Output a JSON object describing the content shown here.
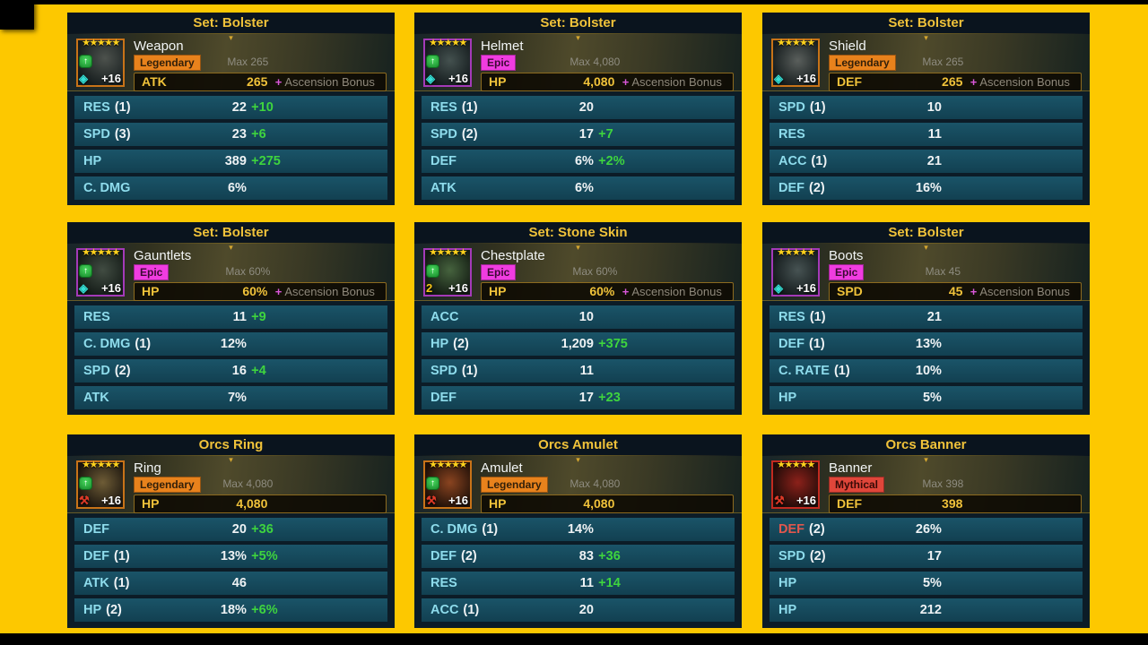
{
  "page": {
    "background_color": "#fdc800",
    "letterbox_color": "#000000"
  },
  "icons": {
    "chevron_down": "▾",
    "ascended_arrow": "↑"
  },
  "colors": {
    "set_title": "#f0c23a",
    "substat_label": "#8edcec",
    "bonus_green": "#3ed43e",
    "main_stat_gold": "#f0c23a",
    "ascension_plus": "#d957d9",
    "muted_gray": "#8e8c80",
    "red_label": "#e2574d"
  },
  "cards": [
    {
      "set_title": "Set: Bolster",
      "item": {
        "name": "Weapon",
        "rarity": "Legendary",
        "rarity_bg": "#e8821c",
        "rarity_fg": "#33200a",
        "border_color": "#c87318",
        "art": "radial-gradient(circle at 60% 40%, #4d524d, #141b1c 78%)",
        "stars": "★★★★★",
        "ascended": true,
        "corner": {
          "name": "arcane-gem-icon",
          "glyph": "◈",
          "color": "#35e0d6"
        },
        "level": "+16",
        "max_label": "Max 265",
        "main_stat": {
          "label": "ATK",
          "value": "265",
          "asc_plus": "+",
          "asc_text": "Ascension Bonus"
        }
      },
      "substats": [
        {
          "label": "RES",
          "rolls": "(1)",
          "value": "22",
          "bonus": "+10"
        },
        {
          "label": "SPD",
          "rolls": "(3)",
          "value": "23",
          "bonus": "+6"
        },
        {
          "label": "HP",
          "rolls": "",
          "value": "389",
          "bonus": "+275"
        },
        {
          "label": "C. DMG",
          "rolls": "",
          "value": "6%",
          "bonus": ""
        }
      ]
    },
    {
      "set_title": "Set: Bolster",
      "item": {
        "name": "Helmet",
        "rarity": "Epic",
        "rarity_bg": "#f03ce0",
        "rarity_fg": "#3c0a34",
        "border_color": "#a43ab8",
        "art": "radial-gradient(circle at 55% 45%, #44514f, #131a1c 78%)",
        "stars": "★★★★★",
        "ascended": true,
        "corner": {
          "name": "arcane-gem-icon",
          "glyph": "◈",
          "color": "#35e0d6"
        },
        "level": "+16",
        "max_label": "Max 4,080",
        "main_stat": {
          "label": "HP",
          "value": "4,080",
          "asc_plus": "+",
          "asc_text": "Ascension Bonus"
        }
      },
      "substats": [
        {
          "label": "RES",
          "rolls": "(1)",
          "value": "20",
          "bonus": ""
        },
        {
          "label": "SPD",
          "rolls": "(2)",
          "value": "17",
          "bonus": "+7"
        },
        {
          "label": "DEF",
          "rolls": "",
          "value": "6%",
          "bonus": "+2%"
        },
        {
          "label": "ATK",
          "rolls": "",
          "value": "6%",
          "bonus": ""
        }
      ]
    },
    {
      "set_title": "Set: Bolster",
      "item": {
        "name": "Shield",
        "rarity": "Legendary",
        "rarity_bg": "#e8821c",
        "rarity_fg": "#33200a",
        "border_color": "#c87318",
        "art": "radial-gradient(circle at 55% 45%, #5a5f5c, #151c1d 78%)",
        "stars": "★★★★★",
        "ascended": false,
        "corner": {
          "name": "arcane-gem-icon",
          "glyph": "◈",
          "color": "#35e0d6"
        },
        "level": "+16",
        "max_label": "Max 265",
        "main_stat": {
          "label": "DEF",
          "value": "265",
          "asc_plus": "+",
          "asc_text": "Ascension Bonus"
        }
      },
      "substats": [
        {
          "label": "SPD",
          "rolls": "(1)",
          "value": "10",
          "bonus": ""
        },
        {
          "label": "RES",
          "rolls": "",
          "value": "11",
          "bonus": ""
        },
        {
          "label": "ACC",
          "rolls": "(1)",
          "value": "21",
          "bonus": ""
        },
        {
          "label": "DEF",
          "rolls": "(2)",
          "value": "16%",
          "bonus": ""
        }
      ]
    },
    {
      "set_title": "Set: Bolster",
      "item": {
        "name": "Gauntlets",
        "rarity": "Epic",
        "rarity_bg": "#f03ce0",
        "rarity_fg": "#3c0a34",
        "border_color": "#a43ab8",
        "art": "radial-gradient(circle at 55% 45%, #414c42, #131a16 78%)",
        "stars": "★★★★★",
        "ascended": true,
        "corner": {
          "name": "arcane-gem-icon",
          "glyph": "◈",
          "color": "#35e0d6"
        },
        "level": "+16",
        "max_label": "Max 60%",
        "main_stat": {
          "label": "HP",
          "value": "60%",
          "asc_plus": "+",
          "asc_text": "Ascension Bonus"
        }
      },
      "substats": [
        {
          "label": "RES",
          "rolls": "",
          "value": "11",
          "bonus": "+9"
        },
        {
          "label": "C. DMG",
          "rolls": "(1)",
          "value": "12%",
          "bonus": ""
        },
        {
          "label": "SPD",
          "rolls": "(2)",
          "value": "16",
          "bonus": "+4"
        },
        {
          "label": "ATK",
          "rolls": "",
          "value": "7%",
          "bonus": ""
        }
      ]
    },
    {
      "set_title": "Set: Stone Skin",
      "item": {
        "name": "Chestplate",
        "rarity": "Epic",
        "rarity_bg": "#f03ce0",
        "rarity_fg": "#3c0a34",
        "border_color": "#a43ab8",
        "art": "radial-gradient(circle at 55% 45%, #46633e, #121a12 78%)",
        "stars": "★★★★★",
        "ascended": true,
        "corner": {
          "name": "count-2-icon",
          "glyph": "2",
          "color": "#f5c518"
        },
        "level": "+16",
        "max_label": "Max 60%",
        "main_stat": {
          "label": "HP",
          "value": "60%",
          "asc_plus": "+",
          "asc_text": "Ascension Bonus"
        }
      },
      "substats": [
        {
          "label": "ACC",
          "rolls": "",
          "value": "10",
          "bonus": ""
        },
        {
          "label": "HP",
          "rolls": "(2)",
          "value": "1,209",
          "bonus": "+375"
        },
        {
          "label": "SPD",
          "rolls": "(1)",
          "value": "11",
          "bonus": ""
        },
        {
          "label": "DEF",
          "rolls": "",
          "value": "17",
          "bonus": "+23"
        }
      ]
    },
    {
      "set_title": "Set: Bolster",
      "item": {
        "name": "Boots",
        "rarity": "Epic",
        "rarity_bg": "#f03ce0",
        "rarity_fg": "#3c0a34",
        "border_color": "#a43ab8",
        "art": "radial-gradient(circle at 55% 45%, #475353, #131a1b 78%)",
        "stars": "★★★★★",
        "ascended": false,
        "corner": {
          "name": "arcane-gem-icon",
          "glyph": "◈",
          "color": "#35e0d6"
        },
        "level": "+16",
        "max_label": "Max 45",
        "main_stat": {
          "label": "SPD",
          "value": "45",
          "asc_plus": "+",
          "asc_text": "Ascension Bonus"
        }
      },
      "substats": [
        {
          "label": "RES",
          "rolls": "(1)",
          "value": "21",
          "bonus": ""
        },
        {
          "label": "DEF",
          "rolls": "(1)",
          "value": "13%",
          "bonus": ""
        },
        {
          "label": "C. RATE",
          "rolls": "(1)",
          "value": "10%",
          "bonus": ""
        },
        {
          "label": "HP",
          "rolls": "",
          "value": "5%",
          "bonus": ""
        }
      ]
    },
    {
      "set_title": "Orcs Ring",
      "item": {
        "name": "Ring",
        "rarity": "Legendary",
        "rarity_bg": "#e8821c",
        "rarity_fg": "#33200a",
        "border_color": "#c87318",
        "art": "radial-gradient(circle at 55% 45%, #6e5c36, #1a140e 78%)",
        "stars": "★★★★★",
        "ascended": true,
        "corner": {
          "name": "orcs-faction-icon",
          "glyph": "⚒",
          "color": "#e03a28"
        },
        "level": "+16",
        "max_label": "Max 4,080",
        "main_stat": {
          "label": "HP",
          "value": "4,080",
          "asc_plus": "",
          "asc_text": ""
        }
      },
      "substats": [
        {
          "label": "DEF",
          "rolls": "",
          "value": "20",
          "bonus": "+36"
        },
        {
          "label": "DEF",
          "rolls": "(1)",
          "value": "13%",
          "bonus": "+5%"
        },
        {
          "label": "ATK",
          "rolls": "(1)",
          "value": "46",
          "bonus": ""
        },
        {
          "label": "HP",
          "rolls": "(2)",
          "value": "18%",
          "bonus": "+6%"
        }
      ]
    },
    {
      "set_title": "Orcs Amulet",
      "item": {
        "name": "Amulet",
        "rarity": "Legendary",
        "rarity_bg": "#e8821c",
        "rarity_fg": "#33200a",
        "border_color": "#c87318",
        "art": "radial-gradient(circle at 55% 45%, #8a4420, #1d0f08 78%)",
        "stars": "★★★★★",
        "ascended": true,
        "corner": {
          "name": "orcs-faction-icon",
          "glyph": "⚒",
          "color": "#e03a28"
        },
        "level": "+16",
        "max_label": "Max 4,080",
        "main_stat": {
          "label": "HP",
          "value": "4,080",
          "asc_plus": "",
          "asc_text": ""
        }
      },
      "substats": [
        {
          "label": "C. DMG",
          "rolls": "(1)",
          "value": "14%",
          "bonus": ""
        },
        {
          "label": "DEF",
          "rolls": "(2)",
          "value": "83",
          "bonus": "+36"
        },
        {
          "label": "RES",
          "rolls": "",
          "value": "11",
          "bonus": "+14"
        },
        {
          "label": "ACC",
          "rolls": "(1)",
          "value": "20",
          "bonus": ""
        }
      ]
    },
    {
      "set_title": "Orcs Banner",
      "item": {
        "name": "Banner",
        "rarity": "Mythical",
        "rarity_bg": "#e0463a",
        "rarity_fg": "#380a06",
        "border_color": "#c32a20",
        "art": "radial-gradient(circle at 55% 45%, #8c211a, #1d0b08 78%)",
        "stars": "★★★★★",
        "ascended": false,
        "corner": {
          "name": "orcs-faction-icon",
          "glyph": "⚒",
          "color": "#e03a28"
        },
        "level": "+16",
        "max_label": "Max 398",
        "main_stat": {
          "label": "DEF",
          "value": "398",
          "asc_plus": "",
          "asc_text": ""
        }
      },
      "substats": [
        {
          "label": "DEF",
          "rolls": "(2)",
          "value": "26%",
          "bonus": "",
          "label_color": "#e2574d"
        },
        {
          "label": "SPD",
          "rolls": "(2)",
          "value": "17",
          "bonus": ""
        },
        {
          "label": "HP",
          "rolls": "",
          "value": "5%",
          "bonus": ""
        },
        {
          "label": "HP",
          "rolls": "",
          "value": "212",
          "bonus": ""
        }
      ]
    }
  ]
}
